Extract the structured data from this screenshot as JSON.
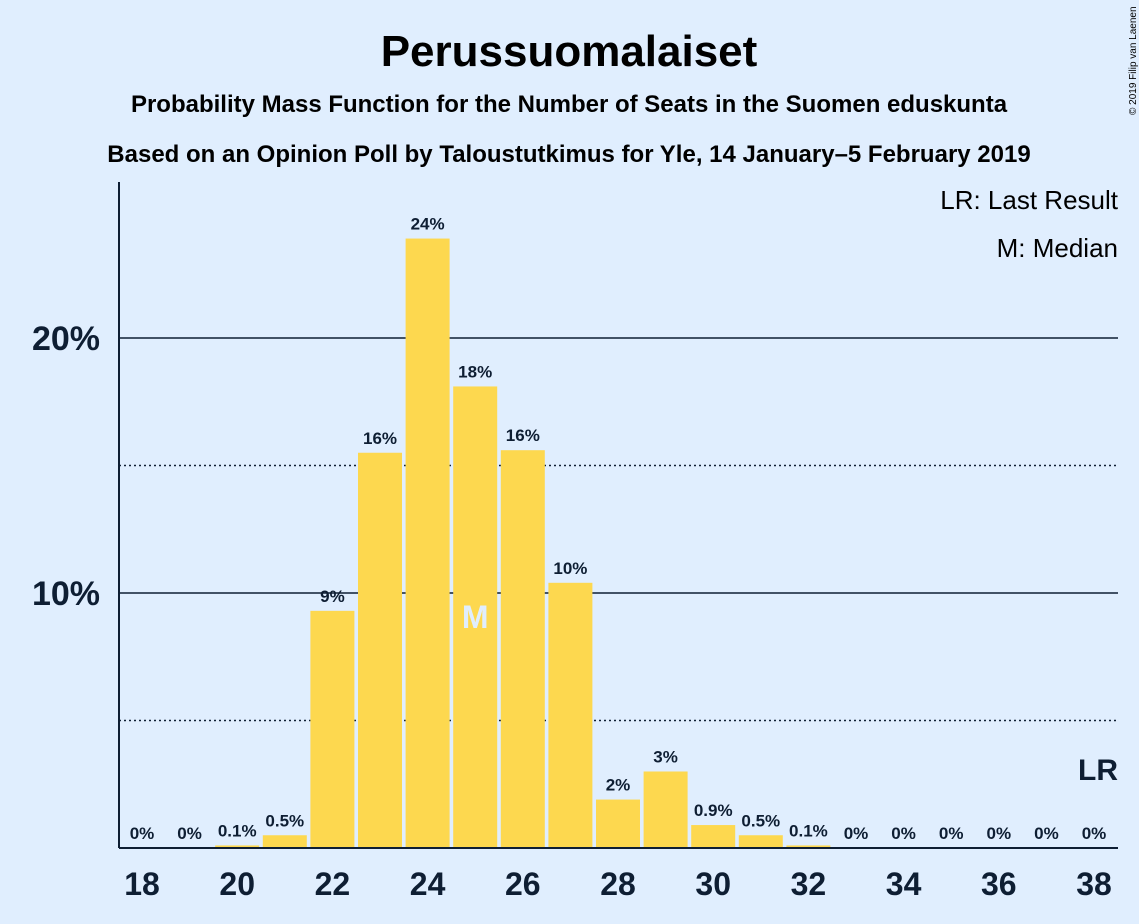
{
  "header": {
    "title": "Perussuomalaiset",
    "subtitle1": "Probability Mass Function for the Number of Seats in the Suomen eduskunta",
    "subtitle2": "Based on an Opinion Poll by Taloustutkimus for Yle, 14 January–5 February 2019",
    "copyright": "© 2019 Filip van Laenen"
  },
  "legend": {
    "lr": "LR: Last Result",
    "median": "M: Median"
  },
  "chart_data": {
    "type": "bar",
    "x": [
      18,
      19,
      20,
      21,
      22,
      23,
      24,
      25,
      26,
      27,
      28,
      29,
      30,
      31,
      32,
      33,
      34,
      35,
      36,
      37,
      38
    ],
    "values": [
      0,
      0,
      0.1,
      0.5,
      9.3,
      15.5,
      23.9,
      18.1,
      15.6,
      10.4,
      1.9,
      3.0,
      0.9,
      0.5,
      0.1,
      0,
      0,
      0,
      0,
      0,
      0
    ],
    "labels": [
      "0%",
      "0%",
      "0.1%",
      "0.5%",
      "9%",
      "16%",
      "24%",
      "18%",
      "16%",
      "10%",
      "2%",
      "3%",
      "0.9%",
      "0.5%",
      "0.1%",
      "0%",
      "0%",
      "0%",
      "0%",
      "0%",
      "0%"
    ],
    "xticks": [
      "18",
      "20",
      "22",
      "24",
      "26",
      "28",
      "30",
      "32",
      "34",
      "36",
      "38"
    ],
    "yticks": [
      {
        "value": 10,
        "label": "10%"
      },
      {
        "value": 20,
        "label": "20%"
      }
    ],
    "minor_gridlines": [
      5,
      15
    ],
    "ylim": [
      0,
      26
    ],
    "median": {
      "x": 25,
      "label": "M"
    },
    "last_result": {
      "x": 38,
      "label": "LR"
    },
    "colors": {
      "bar": "#fdd84f",
      "background": "#e0eefe",
      "text": "#0e1e33",
      "median_text": "#e0eefe"
    }
  }
}
